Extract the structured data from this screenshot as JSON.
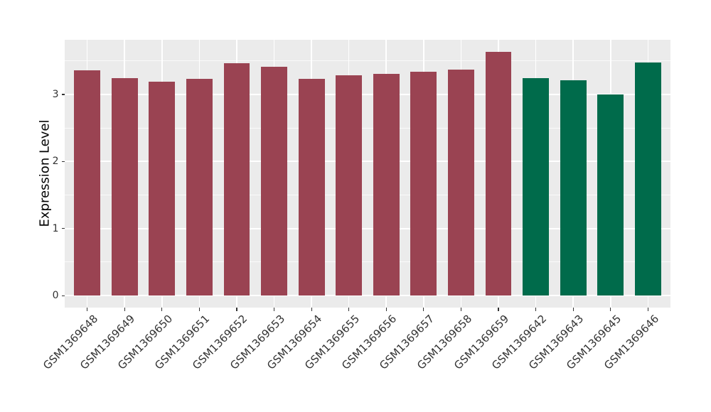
{
  "figure": {
    "background": "#FFFFFF",
    "panel_background": "#EBEBEB",
    "gridline_color": "#FFFFFF",
    "tick_color": "#333333",
    "axis_text_color": "#333333",
    "axis_title_color": "#000000"
  },
  "chart_data": {
    "type": "bar",
    "title": "",
    "xlabel": "",
    "ylabel": "Expression Level",
    "legend_position": "none",
    "grid": "major+minor horizontal, major vertical at category centers",
    "ylim": [
      -0.18,
      3.82
    ],
    "yticks": [
      0,
      1,
      2,
      3
    ],
    "yticks_minor": [
      0.5,
      1.5,
      2.5,
      3.5
    ],
    "group_colors": {
      "group1": "#9A4352",
      "group2": "#006B4B"
    },
    "categories": [
      "GSM1369648",
      "GSM1369649",
      "GSM1369650",
      "GSM1369651",
      "GSM1369652",
      "GSM1369653",
      "GSM1369654",
      "GSM1369655",
      "GSM1369656",
      "GSM1369657",
      "GSM1369658",
      "GSM1369659",
      "GSM1369642",
      "GSM1369643",
      "GSM1369645",
      "GSM1369646"
    ],
    "series": [
      {
        "name": "Expression Level",
        "values": [
          3.36,
          3.24,
          3.19,
          3.23,
          3.46,
          3.41,
          3.23,
          3.28,
          3.31,
          3.34,
          3.37,
          3.63,
          3.24,
          3.21,
          3.0,
          3.48
        ],
        "groups": [
          "group1",
          "group1",
          "group1",
          "group1",
          "group1",
          "group1",
          "group1",
          "group1",
          "group1",
          "group1",
          "group1",
          "group1",
          "group2",
          "group2",
          "group2",
          "group2"
        ]
      }
    ]
  }
}
